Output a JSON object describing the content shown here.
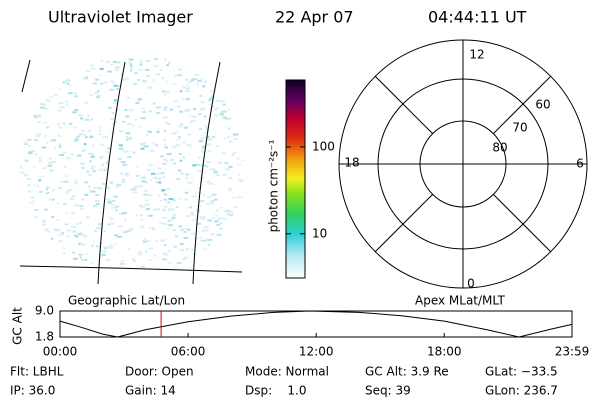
{
  "header": {
    "title": "Ultraviolet Imager",
    "date": "22 Apr 07",
    "time": "04:44:11 UT"
  },
  "map": {
    "label": "Geographic Lat/Lon"
  },
  "colorbar": {
    "label": "photon cm⁻²s⁻¹",
    "log": true,
    "ylim": [
      3.1,
      589
    ],
    "yticks": [
      10,
      100
    ]
  },
  "polar": {
    "label": "Apex MLat/MLT",
    "hour_labels": [
      "12",
      "6",
      "0",
      "18"
    ],
    "lat_labels": [
      "60",
      "70",
      "80"
    ]
  },
  "altitude": {
    "ylabel": "GC Alt",
    "ylim": [
      1.8,
      9.0
    ],
    "yticks": [
      {
        "value": 9.0,
        "label": "9.0"
      },
      1.8
    ],
    "xlim": [
      0,
      23.983
    ],
    "xticks": [
      {
        "value": 0,
        "label": "00:00"
      },
      {
        "value": 6,
        "label": "06:00"
      },
      {
        "value": 12,
        "label": "12:00"
      },
      {
        "value": 18,
        "label": "18:00"
      },
      {
        "value": 23.983,
        "label": "23:59"
      }
    ],
    "x": [
      0,
      1,
      2,
      2.7,
      4,
      6,
      8,
      10,
      11.7,
      14,
      16,
      18,
      20,
      21.5,
      23,
      23.983
    ],
    "values": [
      6.2,
      4.5,
      2.6,
      1.8,
      3.8,
      6.0,
      7.6,
      8.6,
      9.0,
      8.6,
      7.7,
      6.2,
      3.8,
      1.8,
      4.0,
      5.3
    ],
    "current_time": 4.736,
    "current_color": "#e00000"
  },
  "footer": {
    "rows": [
      [
        "Flt: LBHL",
        "Door: Open",
        "Mode: Normal",
        "GC Alt: 3.9 Re",
        "GLat: −33.5"
      ],
      [
        "IP: 36.0",
        "Gain: 14",
        "Dsp:    1.0",
        "Seq: 39",
        "GLon: 236.7"
      ]
    ]
  }
}
